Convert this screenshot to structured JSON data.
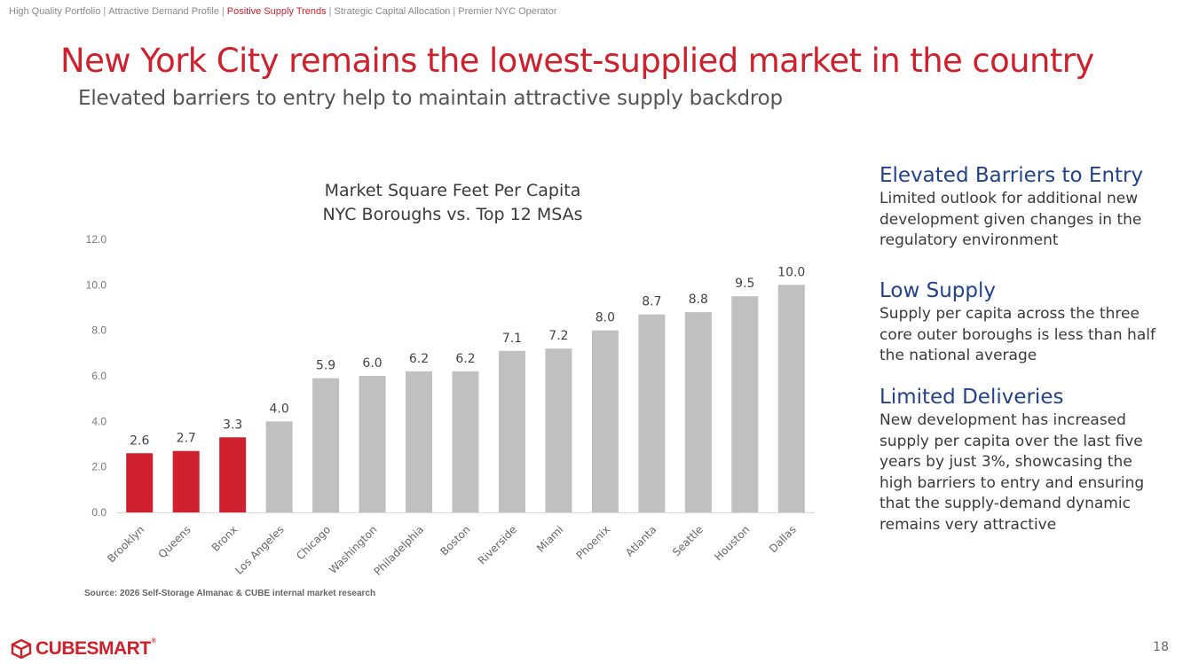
{
  "breadcrumb": [
    {
      "label": "High Quality Portfolio",
      "active": false
    },
    {
      "label": "Attractive Demand Profile",
      "active": false
    },
    {
      "label": "Positive Supply Trends",
      "active": true
    },
    {
      "label": "Strategic Capital Allocation",
      "active": false
    },
    {
      "label": "Premier NYC Operator",
      "active": false
    }
  ],
  "header": {
    "title": "New York City remains the lowest-supplied market in the country",
    "subtitle": "Elevated barriers to entry help to maintain attractive supply backdrop"
  },
  "chart_data": {
    "type": "bar",
    "title": "Market Square Feet Per Capita",
    "subtitle": "NYC Boroughs vs. Top 12 MSAs",
    "categories": [
      "Brooklyn",
      "Queens",
      "Bronx",
      "Los Angeles",
      "Chicago",
      "Washington",
      "Philadelphia",
      "Boston",
      "Riverside",
      "Miami",
      "Phoenix",
      "Atlanta",
      "Seattle",
      "Houston",
      "Dallas"
    ],
    "values": [
      2.6,
      2.7,
      3.3,
      4.0,
      5.9,
      6.0,
      6.2,
      6.2,
      7.1,
      7.2,
      8.0,
      8.7,
      8.8,
      9.5,
      10.0
    ],
    "highlight": [
      true,
      true,
      true,
      false,
      false,
      false,
      false,
      false,
      false,
      false,
      false,
      false,
      false,
      false,
      false
    ],
    "ylim": [
      0,
      12
    ],
    "yticks": [
      "0.0",
      "2.0",
      "4.0",
      "6.0",
      "8.0",
      "10.0",
      "12.0"
    ],
    "data_labels": true,
    "grid": false,
    "colors": {
      "highlight": "#d0202e",
      "base": "#c0c0c0"
    }
  },
  "sidebar": [
    {
      "heading": "Elevated Barriers to Entry",
      "text": "Limited outlook for additional new development given changes in the regulatory environment"
    },
    {
      "heading": "Low Supply",
      "text": "Supply per capita across the three core outer boroughs is less than half the national average"
    },
    {
      "heading": "Limited Deliveries",
      "text": "New development has increased supply per capita over the last five years by just 3%, showcasing the high barriers to entry and ensuring that the supply-demand dynamic remains very attractive"
    }
  ],
  "source": "Source: 2026 Self-Storage Almanac & CUBE internal market research",
  "brand": {
    "name": "CUBESMART",
    "mark": "®"
  },
  "page_number": "18",
  "colors": {
    "accent": "#d0202e",
    "heading_blue": "#23418c"
  }
}
